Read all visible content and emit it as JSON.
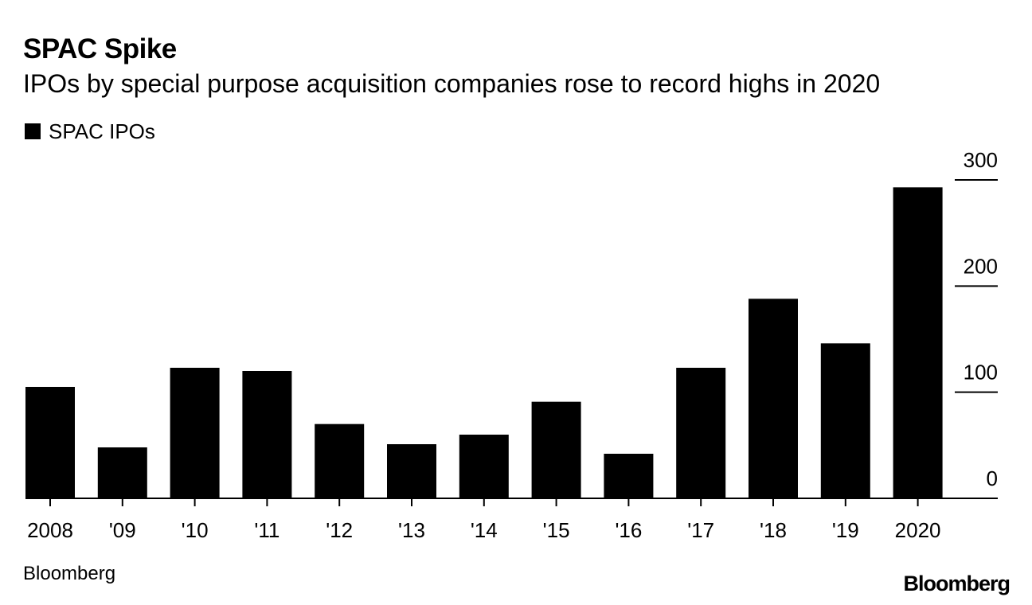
{
  "header": {
    "title": "SPAC Spike",
    "subtitle": "IPOs by special purpose acquisition companies rose to record highs in 2020"
  },
  "legend": {
    "label": "SPAC IPOs",
    "color": "#000000"
  },
  "footer": {
    "source": "Bloomberg",
    "logo_text": "Bloomberg"
  },
  "chart_data": {
    "type": "bar",
    "title": "SPAC Spike",
    "subtitle": "IPOs by special purpose acquisition companies rose to record highs in 2020",
    "xlabel": "",
    "ylabel": "",
    "categories": [
      "2008",
      "'09",
      "'10",
      "'11",
      "'12",
      "'13",
      "'14",
      "'15",
      "'16",
      "'17",
      "'18",
      "'19",
      "2020"
    ],
    "series": [
      {
        "name": "SPAC IPOs",
        "color": "#000000",
        "values": [
          105,
          48,
          123,
          120,
          70,
          51,
          60,
          91,
          42,
          123,
          188,
          146,
          293
        ]
      }
    ],
    "ylim": [
      0,
      300
    ],
    "yticks": [
      0,
      100,
      200,
      300
    ],
    "ytick_labels": [
      "0",
      "100",
      "200",
      "300"
    ],
    "y_axis_position": "right",
    "legend_position": "top-left",
    "grid": false
  }
}
